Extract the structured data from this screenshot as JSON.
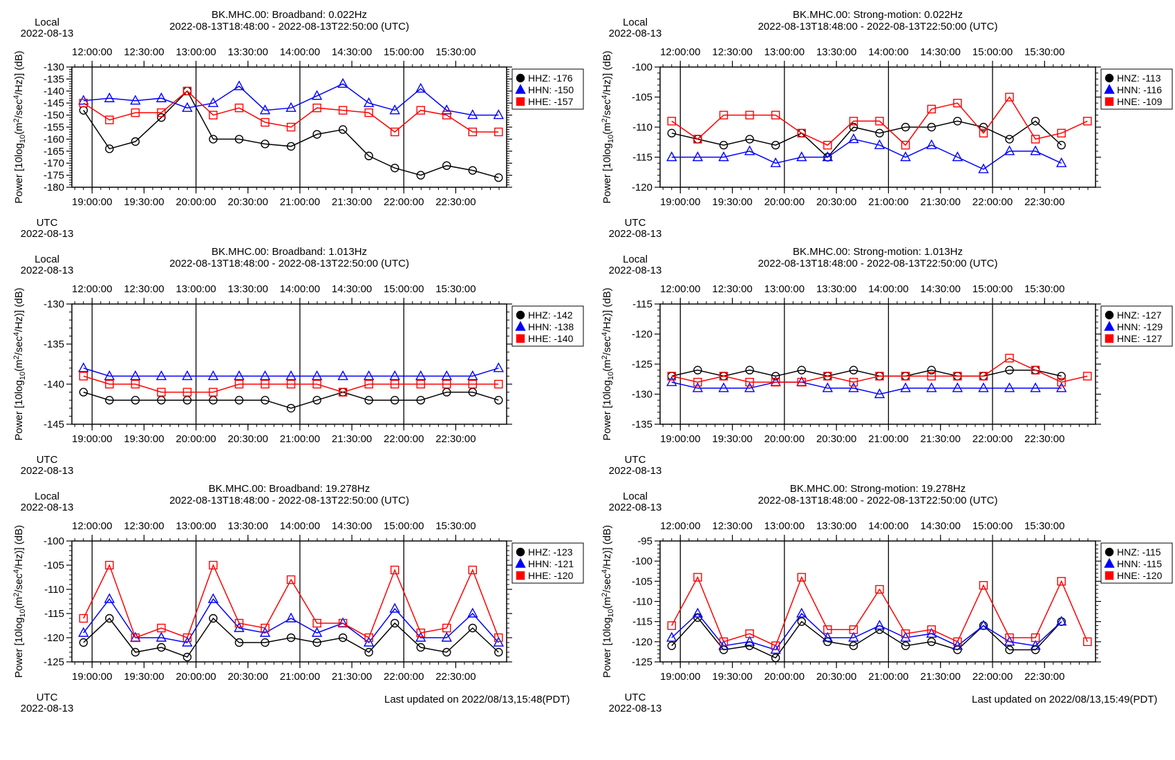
{
  "labels": {
    "local": "Local",
    "utc": "UTC",
    "date": "2022-08-13",
    "ylabel_prefix": "Power [10log",
    "ylabel_sub": "10",
    "ylabel_mid": "(m",
    "ylabel_sup2": "2",
    "ylabel_mid2": "/sec",
    "ylabel_sup4": "4",
    "ylabel_end": "/Hz)] (dB)",
    "subtitle": "2022-08-13T18:48:00 - 2022-08-13T22:50:00 (UTC)",
    "utc_ticks": [
      "19:00:00",
      "19:30:00",
      "20:00:00",
      "20:30:00",
      "21:00:00",
      "21:30:00",
      "22:00:00",
      "22:30:00"
    ],
    "local_ticks": [
      "12:00:00",
      "12:30:00",
      "13:00:00",
      "13:30:00",
      "14:00:00",
      "14:30:00",
      "15:00:00",
      "15:30:00"
    ]
  },
  "footer": {
    "left": "Last updated on 2022/08/13,15:48(PDT)",
    "right": "Last updated on 2022/08/13,15:49(PDT)"
  },
  "colors": {
    "z": "#000000",
    "n": "#0000ff",
    "e": "#ff0000"
  },
  "chart_data": [
    {
      "type": "line",
      "title": "BK.MHC.00: Broadband: 0.022Hz",
      "ylim": [
        -180,
        -130
      ],
      "yticks": [
        -130,
        -135,
        -140,
        -145,
        -150,
        -155,
        -160,
        -165,
        -170,
        -175,
        -180
      ],
      "series": [
        {
          "name": "HHZ: -176",
          "key": "z",
          "values": [
            -148,
            -164,
            -161,
            -151,
            -140,
            -160,
            -160,
            -162,
            -163,
            -158,
            -156,
            -167,
            -172,
            -175,
            -171,
            -173,
            -176
          ]
        },
        {
          "name": "HHN: -150",
          "key": "n",
          "values": [
            -144,
            -143,
            -144,
            -143,
            -147,
            -145,
            -138,
            -148,
            -147,
            -142,
            -137,
            -145,
            -148,
            -139,
            -148,
            -150,
            -150
          ]
        },
        {
          "name": "HHE: -157",
          "key": "e",
          "values": [
            -145,
            -152,
            -149,
            -149,
            -140,
            -150,
            -147,
            -153,
            -155,
            -147,
            -148,
            -149,
            -157,
            -148,
            -150,
            -157,
            -157
          ]
        }
      ]
    },
    {
      "type": "line",
      "title": "BK.MHC.00: Strong-motion: 0.022Hz",
      "ylim": [
        -120,
        -100
      ],
      "yticks": [
        -100,
        -105,
        -110,
        -115,
        -120
      ],
      "series": [
        {
          "name": "HNZ: -113",
          "key": "z",
          "values": [
            -111,
            -112,
            -113,
            -112,
            -113,
            -111,
            -115,
            -110,
            -111,
            -110,
            -110,
            -109,
            -110,
            -112,
            -109,
            -113,
            null
          ]
        },
        {
          "name": "HNN: -116",
          "key": "n",
          "values": [
            -115,
            -115,
            -115,
            -114,
            -116,
            -115,
            -115,
            -112,
            -113,
            -115,
            -113,
            -115,
            -117,
            -114,
            -114,
            -116,
            null
          ]
        },
        {
          "name": "HNE: -109",
          "key": "e",
          "values": [
            -109,
            -112,
            -108,
            -108,
            -108,
            -111,
            -113,
            -109,
            -109,
            -113,
            -107,
            -106,
            -111,
            -105,
            -112,
            -111,
            -109
          ]
        }
      ]
    },
    {
      "type": "line",
      "title": "BK.MHC.00: Broadband: 1.013Hz",
      "ylim": [
        -145,
        -130
      ],
      "yticks": [
        -130,
        -135,
        -140,
        -145
      ],
      "series": [
        {
          "name": "HHZ: -142",
          "key": "z",
          "values": [
            -141,
            -142,
            -142,
            -142,
            -142,
            -142,
            -142,
            -142,
            -143,
            -142,
            -141,
            -142,
            -142,
            -142,
            -141,
            -141,
            -142
          ]
        },
        {
          "name": "HHN: -138",
          "key": "n",
          "values": [
            -138,
            -139,
            -139,
            -139,
            -139,
            -139,
            -139,
            -139,
            -139,
            -139,
            -139,
            -139,
            -139,
            -139,
            -139,
            -139,
            -138
          ]
        },
        {
          "name": "HHE: -140",
          "key": "e",
          "values": [
            -139,
            -140,
            -140,
            -141,
            -141,
            -141,
            -140,
            -140,
            -140,
            -140,
            -141,
            -140,
            -140,
            -140,
            -140,
            -140,
            -140
          ]
        }
      ]
    },
    {
      "type": "line",
      "title": "BK.MHC.00: Strong-motion: 1.013Hz",
      "ylim": [
        -135,
        -115
      ],
      "yticks": [
        -115,
        -120,
        -125,
        -130,
        -135
      ],
      "series": [
        {
          "name": "HNZ: -127",
          "key": "z",
          "values": [
            -127,
            -126,
            -127,
            -126,
            -127,
            -126,
            -127,
            -126,
            -127,
            -127,
            -126,
            -127,
            -127,
            -126,
            -126,
            -127,
            null
          ]
        },
        {
          "name": "HNN: -129",
          "key": "n",
          "values": [
            -128,
            -129,
            -129,
            -129,
            -128,
            -128,
            -129,
            -129,
            -130,
            -129,
            -129,
            -129,
            -129,
            -129,
            -129,
            -129,
            null
          ]
        },
        {
          "name": "HNE: -127",
          "key": "e",
          "values": [
            -127,
            -128,
            -127,
            -128,
            -128,
            -128,
            -127,
            -128,
            -127,
            -127,
            -127,
            -127,
            -127,
            -124,
            -126,
            -128,
            -127
          ]
        }
      ]
    },
    {
      "type": "line",
      "title": "BK.MHC.00: Broadband: 19.278Hz",
      "ylim": [
        -125,
        -100
      ],
      "yticks": [
        -100,
        -105,
        -110,
        -115,
        -120,
        -125
      ],
      "series": [
        {
          "name": "HHZ: -123",
          "key": "z",
          "values": [
            -121,
            -116,
            -123,
            -122,
            -124,
            -116,
            -121,
            -121,
            -120,
            -121,
            -120,
            -123,
            -117,
            -122,
            -123,
            -118,
            -123
          ]
        },
        {
          "name": "HHN: -121",
          "key": "n",
          "values": [
            -119,
            -112,
            -120,
            -120,
            -121,
            -112,
            -118,
            -119,
            -116,
            -119,
            -117,
            -121,
            -114,
            -120,
            -120,
            -115,
            -121
          ]
        },
        {
          "name": "HHE: -120",
          "key": "e",
          "values": [
            -116,
            -105,
            -120,
            -118,
            -120,
            -105,
            -117,
            -118,
            -108,
            -117,
            -117,
            -120,
            -106,
            -119,
            -118,
            -106,
            -120
          ]
        }
      ]
    },
    {
      "type": "line",
      "title": "BK.MHC.00: Strong-motion: 19.278Hz",
      "ylim": [
        -125,
        -95
      ],
      "yticks": [
        -95,
        -100,
        -105,
        -110,
        -115,
        -120,
        -125
      ],
      "series": [
        {
          "name": "HNZ: -115",
          "key": "z",
          "values": [
            -121,
            -114,
            -122,
            -121,
            -124,
            -115,
            -120,
            -121,
            -117,
            -121,
            -120,
            -122,
            -116,
            -122,
            -122,
            -115,
            null
          ]
        },
        {
          "name": "HNN: -115",
          "key": "n",
          "values": [
            -119,
            -113,
            -121,
            -120,
            -122,
            -113,
            -119,
            -119,
            -116,
            -119,
            -118,
            -121,
            -116,
            -120,
            -121,
            -115,
            null
          ]
        },
        {
          "name": "HNE: -120",
          "key": "e",
          "values": [
            -116,
            -104,
            -120,
            -118,
            -121,
            -104,
            -117,
            -117,
            -107,
            -118,
            -117,
            -120,
            -106,
            -119,
            -119,
            -105,
            -120
          ]
        }
      ]
    }
  ]
}
